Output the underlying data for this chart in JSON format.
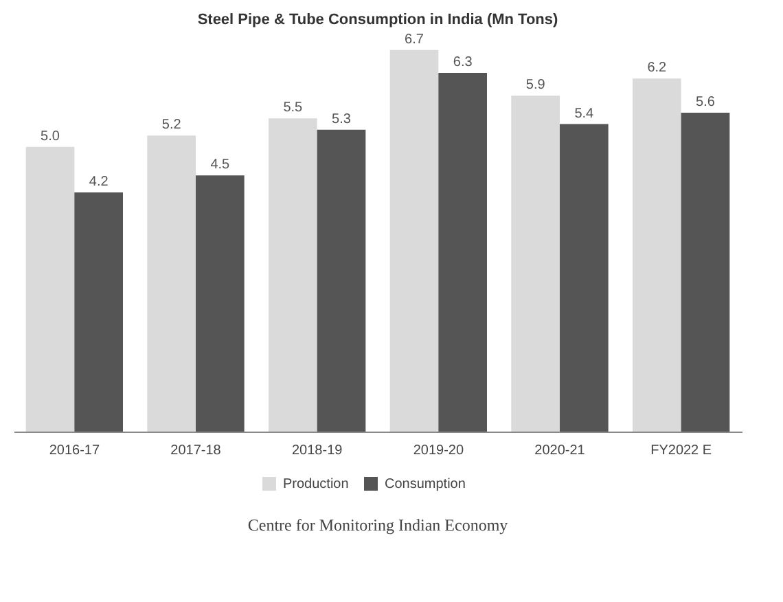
{
  "chart_data": {
    "type": "bar",
    "title": "Steel Pipe & Tube Consumption in India (Mn Tons)",
    "categories": [
      "2016-17",
      "2017-18",
      "2018-19",
      "2019-20",
      "2020-21",
      "FY2022 E"
    ],
    "series": [
      {
        "name": "Production",
        "color": "#dadada",
        "values": [
          5.0,
          5.2,
          5.5,
          6.7,
          5.9,
          6.2
        ],
        "value_labels": [
          "5.0",
          "5.2",
          "5.5",
          "6.7",
          "5.9",
          "6.2"
        ]
      },
      {
        "name": "Consumption",
        "color": "#555555",
        "values": [
          4.2,
          4.5,
          5.3,
          6.3,
          5.4,
          5.6
        ],
        "value_labels": [
          "4.2",
          "4.5",
          "5.3",
          "6.3",
          "5.4",
          "5.6"
        ]
      }
    ],
    "legend": "bottom",
    "grid": false,
    "annotations": [
      "Centre for Monitoring Indian Economy"
    ]
  }
}
